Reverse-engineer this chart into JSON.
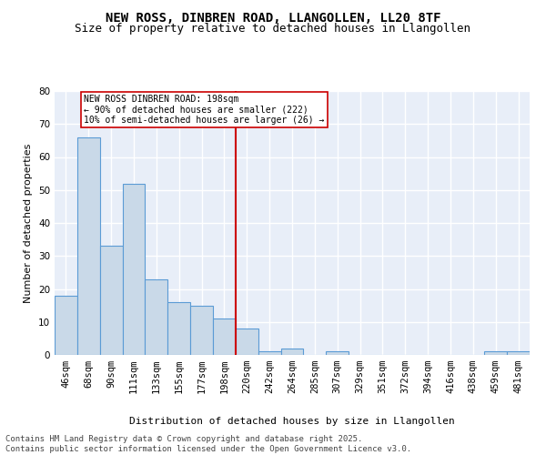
{
  "title": "NEW ROSS, DINBREN ROAD, LLANGOLLEN, LL20 8TF",
  "subtitle": "Size of property relative to detached houses in Llangollen",
  "xlabel": "Distribution of detached houses by size in Llangollen",
  "ylabel": "Number of detached properties",
  "categories": [
    "46sqm",
    "68sqm",
    "90sqm",
    "111sqm",
    "133sqm",
    "155sqm",
    "177sqm",
    "198sqm",
    "220sqm",
    "242sqm",
    "264sqm",
    "285sqm",
    "307sqm",
    "329sqm",
    "351sqm",
    "372sqm",
    "394sqm",
    "416sqm",
    "438sqm",
    "459sqm",
    "481sqm"
  ],
  "values": [
    18,
    66,
    33,
    52,
    23,
    16,
    15,
    11,
    8,
    1,
    2,
    0,
    1,
    0,
    0,
    0,
    0,
    0,
    0,
    1,
    1
  ],
  "bar_color": "#c9d9e8",
  "bar_edge_color": "#5b9bd5",
  "vline_index": 7,
  "vline_color": "#cc0000",
  "annotation_text": "NEW ROSS DINBREN ROAD: 198sqm\n← 90% of detached houses are smaller (222)\n10% of semi-detached houses are larger (26) →",
  "annotation_box_color": "#ffffff",
  "annotation_box_edge": "#cc0000",
  "ylim": [
    0,
    80
  ],
  "yticks": [
    0,
    10,
    20,
    30,
    40,
    50,
    60,
    70,
    80
  ],
  "background_color": "#e8eef8",
  "grid_color": "#ffffff",
  "footer": "Contains HM Land Registry data © Crown copyright and database right 2025.\nContains public sector information licensed under the Open Government Licence v3.0.",
  "title_fontsize": 10,
  "subtitle_fontsize": 9,
  "axis_label_fontsize": 8,
  "tick_fontsize": 7.5,
  "footer_fontsize": 6.5
}
